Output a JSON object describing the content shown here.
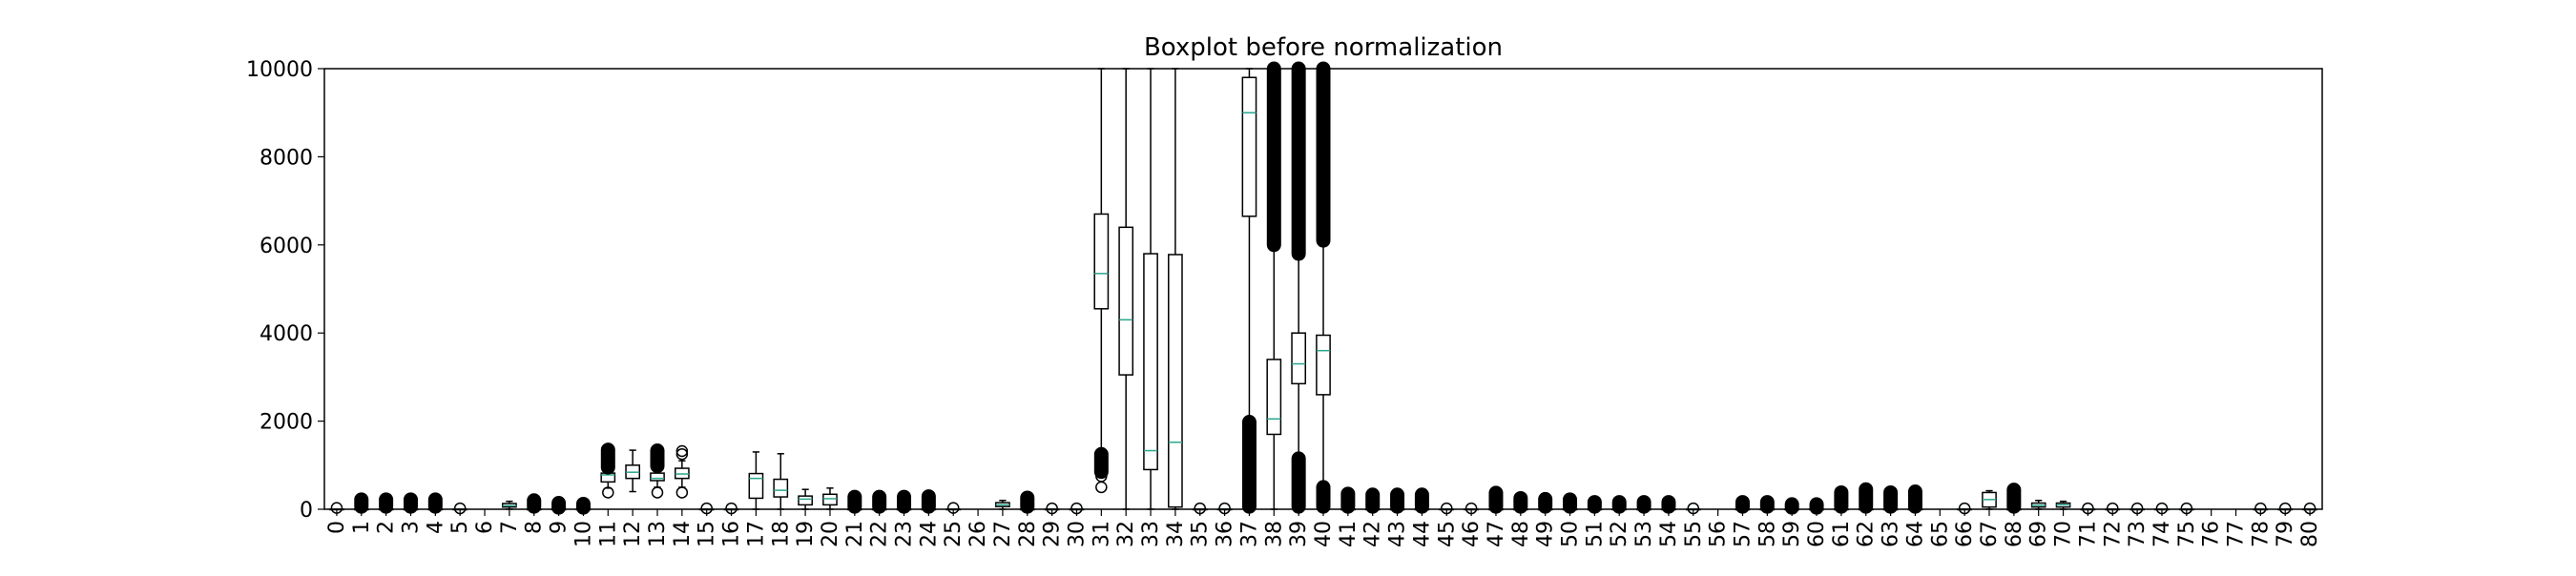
{
  "chart_data": {
    "type": "boxplot",
    "title": "Boxplot before normalization",
    "xlabel": "",
    "ylabel": "",
    "ylim": [
      0,
      10000
    ],
    "yticks": [
      0,
      2000,
      4000,
      6000,
      8000,
      10000
    ],
    "grid": false,
    "categories": [
      "0",
      "1",
      "2",
      "3",
      "4",
      "5",
      "6",
      "7",
      "8",
      "9",
      "10",
      "11",
      "12",
      "13",
      "14",
      "15",
      "16",
      "17",
      "18",
      "19",
      "20",
      "21",
      "22",
      "23",
      "24",
      "25",
      "26",
      "27",
      "28",
      "29",
      "30",
      "31",
      "32",
      "33",
      "34",
      "35",
      "36",
      "37",
      "38",
      "39",
      "40",
      "41",
      "42",
      "43",
      "44",
      "45",
      "46",
      "47",
      "48",
      "49",
      "50",
      "51",
      "52",
      "53",
      "54",
      "55",
      "56",
      "57",
      "58",
      "59",
      "60",
      "61",
      "62",
      "63",
      "64",
      "65",
      "66",
      "67",
      "68",
      "69",
      "70",
      "71",
      "72",
      "73",
      "74",
      "75",
      "76",
      "77",
      "78",
      "79",
      "80"
    ],
    "boxes": [
      {
        "q1": 0,
        "med": 0,
        "q3": 0,
        "wlo": 0,
        "whi": 0,
        "fliers": [
          30
        ]
      },
      {
        "q1": 0,
        "med": 0,
        "q3": 0,
        "wlo": 0,
        "whi": 0,
        "fliers": [],
        "band": [
          60,
          220
        ]
      },
      {
        "q1": 0,
        "med": 0,
        "q3": 0,
        "wlo": 0,
        "whi": 0,
        "fliers": [],
        "band": [
          60,
          220
        ]
      },
      {
        "q1": 0,
        "med": 0,
        "q3": 0,
        "wlo": 0,
        "whi": 0,
        "fliers": [],
        "band": [
          60,
          220
        ]
      },
      {
        "q1": 0,
        "med": 0,
        "q3": 0,
        "wlo": 0,
        "whi": 0,
        "fliers": [],
        "band": [
          60,
          220
        ]
      },
      {
        "q1": 0,
        "med": 0,
        "q3": 0,
        "wlo": 0,
        "whi": 0,
        "fliers": [
          20
        ]
      },
      null,
      {
        "q1": 50,
        "med": 80,
        "q3": 130,
        "wlo": 0,
        "whi": 180,
        "fliers": []
      },
      {
        "q1": 0,
        "med": 0,
        "q3": 0,
        "wlo": 0,
        "whi": 0,
        "fliers": [],
        "band": [
          60,
          200
        ]
      },
      {
        "q1": 0,
        "med": 0,
        "q3": 0,
        "wlo": 0,
        "whi": 0,
        "fliers": [],
        "band": [
          40,
          140
        ]
      },
      {
        "q1": 0,
        "med": 0,
        "q3": 0,
        "wlo": 0,
        "whi": 0,
        "fliers": [],
        "band": [
          40,
          120
        ]
      },
      {
        "q1": 620,
        "med": 780,
        "q3": 820,
        "wlo": 480,
        "whi": 900,
        "fliers": [
          380
        ],
        "band": [
          950,
          1350
        ]
      },
      {
        "q1": 700,
        "med": 840,
        "q3": 1000,
        "wlo": 400,
        "whi": 1340,
        "fliers": []
      },
      {
        "q1": 650,
        "med": 700,
        "q3": 820,
        "wlo": 500,
        "whi": 950,
        "fliers": [
          380
        ],
        "band": [
          980,
          1330
        ]
      },
      {
        "q1": 700,
        "med": 800,
        "q3": 930,
        "wlo": 500,
        "whi": 1100,
        "fliers": [
          380,
          1250,
          1320
        ]
      },
      {
        "q1": 0,
        "med": 0,
        "q3": 0,
        "wlo": 0,
        "whi": 0,
        "fliers": [
          20
        ]
      },
      {
        "q1": 0,
        "med": 0,
        "q3": 0,
        "wlo": 0,
        "whi": 0,
        "fliers": [
          20
        ]
      },
      {
        "q1": 250,
        "med": 700,
        "q3": 810,
        "wlo": 0,
        "whi": 1300,
        "fliers": []
      },
      {
        "q1": 280,
        "med": 430,
        "q3": 680,
        "wlo": 0,
        "whi": 1260,
        "fliers": []
      },
      {
        "q1": 100,
        "med": 230,
        "q3": 300,
        "wlo": 0,
        "whi": 450,
        "fliers": []
      },
      {
        "q1": 100,
        "med": 240,
        "q3": 340,
        "wlo": 0,
        "whi": 480,
        "fliers": []
      },
      {
        "q1": 0,
        "med": 0,
        "q3": 0,
        "wlo": 0,
        "whi": 0,
        "fliers": [],
        "band": [
          60,
          280
        ]
      },
      {
        "q1": 0,
        "med": 0,
        "q3": 0,
        "wlo": 0,
        "whi": 0,
        "fliers": [],
        "band": [
          60,
          280
        ]
      },
      {
        "q1": 0,
        "med": 0,
        "q3": 0,
        "wlo": 0,
        "whi": 0,
        "fliers": [],
        "band": [
          60,
          280
        ]
      },
      {
        "q1": 0,
        "med": 0,
        "q3": 0,
        "wlo": 0,
        "whi": 0,
        "fliers": [],
        "band": [
          60,
          290
        ]
      },
      {
        "q1": 0,
        "med": 0,
        "q3": 0,
        "wlo": 0,
        "whi": 0,
        "fliers": [
          30
        ]
      },
      null,
      {
        "q1": 60,
        "med": 100,
        "q3": 150,
        "wlo": 0,
        "whi": 200,
        "fliers": []
      },
      {
        "q1": 0,
        "med": 0,
        "q3": 0,
        "wlo": 0,
        "whi": 0,
        "fliers": [],
        "band": [
          60,
          260
        ]
      },
      {
        "q1": 0,
        "med": 0,
        "q3": 0,
        "wlo": 0,
        "whi": 0,
        "fliers": [
          20
        ]
      },
      {
        "q1": 0,
        "med": 0,
        "q3": 0,
        "wlo": 0,
        "whi": 0,
        "fliers": [
          20
        ]
      },
      {
        "q1": 4550,
        "med": 5350,
        "q3": 6700,
        "wlo": 1300,
        "whi": 10000,
        "fliers": [
          500,
          750
        ],
        "band": [
          850,
          1250
        ]
      },
      {
        "q1": 3050,
        "med": 4300,
        "q3": 6400,
        "wlo": 0,
        "whi": 10000,
        "fliers": []
      },
      {
        "q1": 900,
        "med": 1330,
        "q3": 5800,
        "wlo": 0,
        "whi": 10000,
        "fliers": []
      },
      {
        "q1": 50,
        "med": 1520,
        "q3": 5780,
        "wlo": 0,
        "whi": 10000,
        "fliers": []
      },
      {
        "q1": 0,
        "med": 0,
        "q3": 0,
        "wlo": 0,
        "whi": 0,
        "fliers": [
          20
        ]
      },
      {
        "q1": 0,
        "med": 0,
        "q3": 0,
        "wlo": 0,
        "whi": 0,
        "fliers": [
          20
        ]
      },
      {
        "q1": 6650,
        "med": 9000,
        "q3": 9800,
        "wlo": 2000,
        "whi": 10000,
        "fliers": [],
        "band": [
          60,
          1980
        ]
      },
      {
        "q1": 1700,
        "med": 2050,
        "q3": 3400,
        "wlo": 0,
        "whi": 5900,
        "fliers": [],
        "band": [
          6000,
          10000
        ]
      },
      {
        "q1": 2850,
        "med": 3300,
        "q3": 4000,
        "wlo": 1200,
        "whi": 5700,
        "fliers": [],
        "bands": [
          [
            60,
            1150
          ],
          [
            5800,
            10000
          ]
        ]
      },
      {
        "q1": 2600,
        "med": 3600,
        "q3": 3950,
        "wlo": 550,
        "whi": 6000,
        "fliers": [],
        "bands": [
          [
            60,
            500
          ],
          [
            6100,
            10000
          ]
        ]
      },
      {
        "q1": 0,
        "med": 0,
        "q3": 0,
        "wlo": 0,
        "whi": 0,
        "fliers": [],
        "band": [
          60,
          350
        ]
      },
      {
        "q1": 0,
        "med": 0,
        "q3": 0,
        "wlo": 0,
        "whi": 0,
        "fliers": [],
        "band": [
          60,
          330
        ]
      },
      {
        "q1": 0,
        "med": 0,
        "q3": 0,
        "wlo": 0,
        "whi": 0,
        "fliers": [],
        "band": [
          60,
          330
        ]
      },
      {
        "q1": 0,
        "med": 0,
        "q3": 0,
        "wlo": 0,
        "whi": 0,
        "fliers": [],
        "band": [
          60,
          330
        ]
      },
      {
        "q1": 0,
        "med": 0,
        "q3": 0,
        "wlo": 0,
        "whi": 0,
        "fliers": [
          20
        ]
      },
      {
        "q1": 0,
        "med": 0,
        "q3": 0,
        "wlo": 0,
        "whi": 0,
        "fliers": [
          20
        ]
      },
      {
        "q1": 0,
        "med": 0,
        "q3": 0,
        "wlo": 0,
        "whi": 0,
        "fliers": [],
        "band": [
          60,
          370
        ]
      },
      {
        "q1": 0,
        "med": 0,
        "q3": 0,
        "wlo": 0,
        "whi": 0,
        "fliers": [],
        "band": [
          60,
          250
        ]
      },
      {
        "q1": 0,
        "med": 0,
        "q3": 0,
        "wlo": 0,
        "whi": 0,
        "fliers": [],
        "band": [
          60,
          230
        ]
      },
      {
        "q1": 0,
        "med": 0,
        "q3": 0,
        "wlo": 0,
        "whi": 0,
        "fliers": [],
        "band": [
          60,
          220
        ]
      },
      {
        "q1": 0,
        "med": 0,
        "q3": 0,
        "wlo": 0,
        "whi": 0,
        "fliers": [],
        "band": [
          60,
          160
        ]
      },
      {
        "q1": 0,
        "med": 0,
        "q3": 0,
        "wlo": 0,
        "whi": 0,
        "fliers": [],
        "band": [
          60,
          160
        ]
      },
      {
        "q1": 0,
        "med": 0,
        "q3": 0,
        "wlo": 0,
        "whi": 0,
        "fliers": [],
        "band": [
          60,
          160
        ]
      },
      {
        "q1": 0,
        "med": 0,
        "q3": 0,
        "wlo": 0,
        "whi": 0,
        "fliers": [],
        "band": [
          60,
          160
        ]
      },
      {
        "q1": 0,
        "med": 0,
        "q3": 0,
        "wlo": 0,
        "whi": 0,
        "fliers": [
          20
        ]
      },
      null,
      {
        "q1": 0,
        "med": 0,
        "q3": 0,
        "wlo": 0,
        "whi": 0,
        "fliers": [],
        "band": [
          60,
          160
        ]
      },
      {
        "q1": 0,
        "med": 0,
        "q3": 0,
        "wlo": 0,
        "whi": 0,
        "fliers": [],
        "band": [
          60,
          160
        ]
      },
      {
        "q1": 0,
        "med": 0,
        "q3": 0,
        "wlo": 0,
        "whi": 0,
        "fliers": [],
        "band": [
          40,
          110
        ]
      },
      {
        "q1": 0,
        "med": 0,
        "q3": 0,
        "wlo": 0,
        "whi": 0,
        "fliers": [],
        "band": [
          40,
          110
        ]
      },
      {
        "q1": 0,
        "med": 0,
        "q3": 0,
        "wlo": 0,
        "whi": 0,
        "fliers": [],
        "band": [
          60,
          380
        ]
      },
      {
        "q1": 0,
        "med": 0,
        "q3": 0,
        "wlo": 0,
        "whi": 0,
        "fliers": [],
        "band": [
          60,
          450
        ]
      },
      {
        "q1": 0,
        "med": 0,
        "q3": 0,
        "wlo": 0,
        "whi": 0,
        "fliers": [],
        "band": [
          60,
          380
        ]
      },
      {
        "q1": 0,
        "med": 0,
        "q3": 0,
        "wlo": 0,
        "whi": 0,
        "fliers": [],
        "band": [
          60,
          400
        ]
      },
      null,
      {
        "q1": 0,
        "med": 0,
        "q3": 0,
        "wlo": 0,
        "whi": 0,
        "fliers": [
          20
        ]
      },
      {
        "q1": 50,
        "med": 220,
        "q3": 380,
        "wlo": 0,
        "whi": 420,
        "fliers": []
      },
      {
        "q1": 0,
        "med": 0,
        "q3": 0,
        "wlo": 0,
        "whi": 0,
        "fliers": [],
        "band": [
          60,
          440
        ]
      },
      {
        "q1": 50,
        "med": 90,
        "q3": 140,
        "wlo": 0,
        "whi": 200,
        "fliers": []
      },
      {
        "q1": 50,
        "med": 100,
        "q3": 140,
        "wlo": 0,
        "whi": 180,
        "fliers": []
      },
      {
        "q1": 0,
        "med": 0,
        "q3": 0,
        "wlo": 0,
        "whi": 0,
        "fliers": [
          20
        ]
      },
      {
        "q1": 0,
        "med": 0,
        "q3": 0,
        "wlo": 0,
        "whi": 0,
        "fliers": [
          20
        ]
      },
      {
        "q1": 0,
        "med": 0,
        "q3": 0,
        "wlo": 0,
        "whi": 0,
        "fliers": [
          20
        ]
      },
      {
        "q1": 0,
        "med": 0,
        "q3": 0,
        "wlo": 0,
        "whi": 0,
        "fliers": [
          20
        ]
      },
      {
        "q1": 0,
        "med": 0,
        "q3": 0,
        "wlo": 0,
        "whi": 0,
        "fliers": [
          20
        ]
      },
      null,
      null,
      {
        "q1": 0,
        "med": 0,
        "q3": 0,
        "wlo": 0,
        "whi": 0,
        "fliers": [
          20
        ]
      },
      {
        "q1": 0,
        "med": 0,
        "q3": 0,
        "wlo": 0,
        "whi": 0,
        "fliers": [
          20
        ]
      },
      {
        "q1": 0,
        "med": 0,
        "q3": 0,
        "wlo": 0,
        "whi": 0,
        "fliers": [
          20
        ]
      }
    ]
  }
}
